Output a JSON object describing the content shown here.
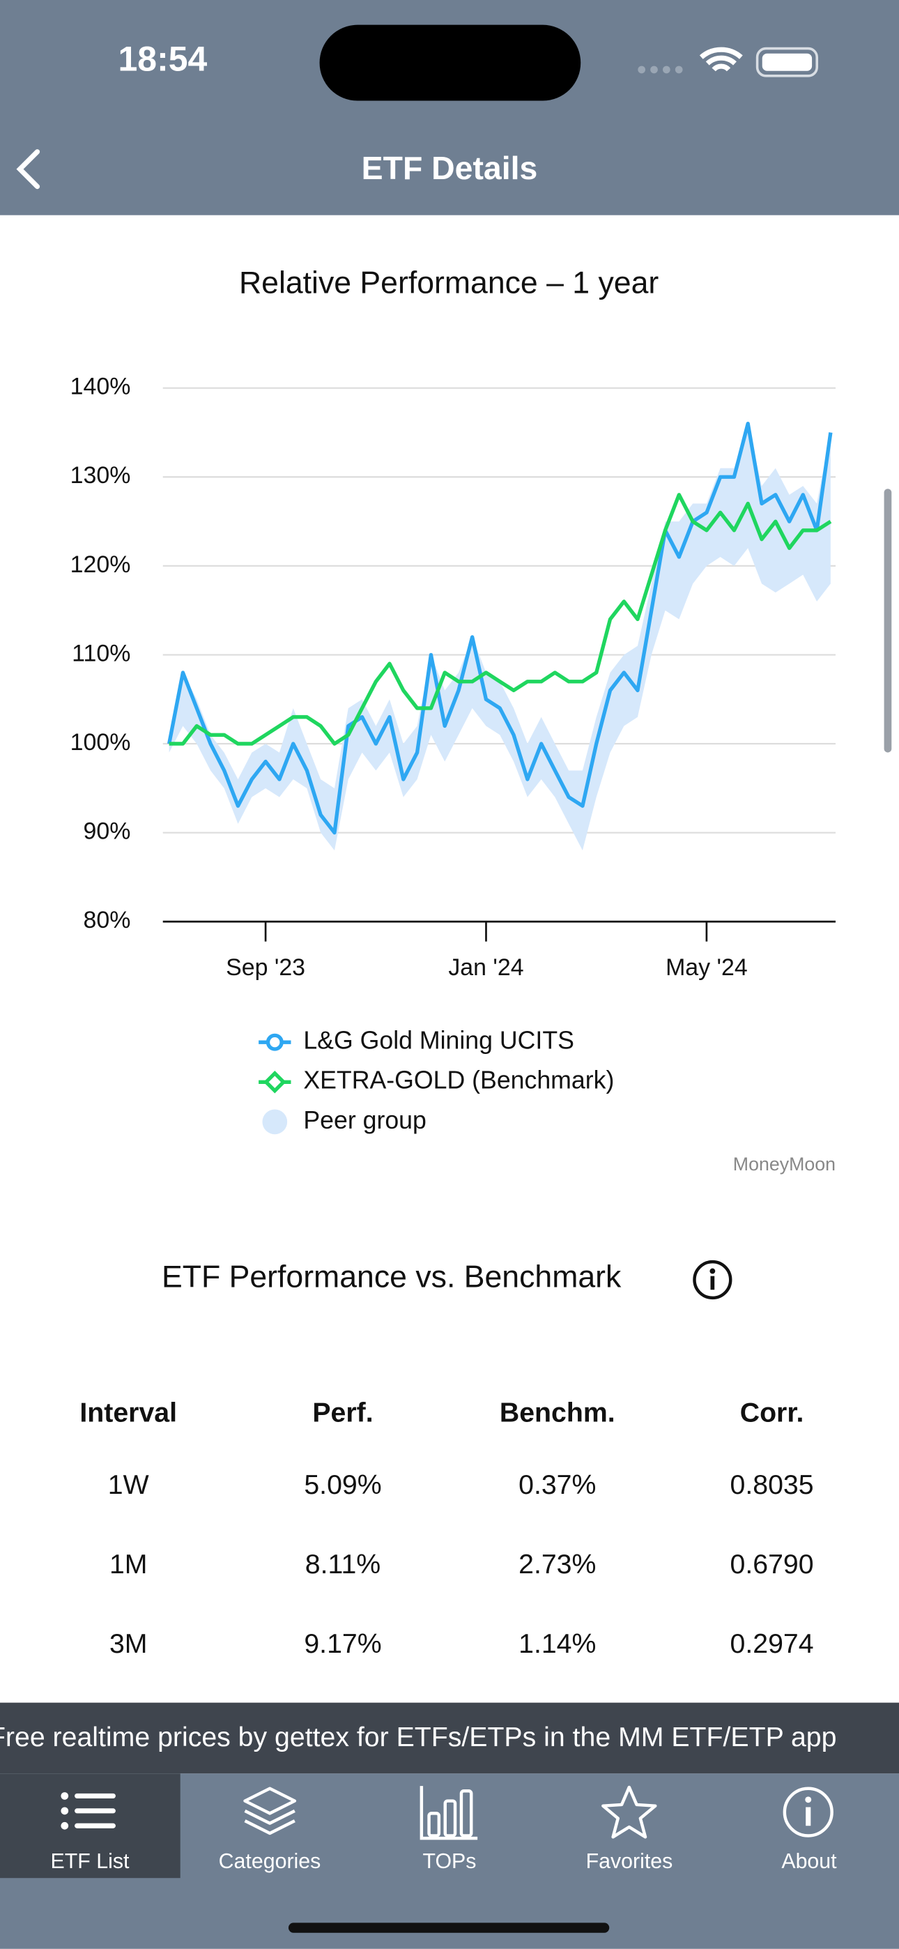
{
  "status_bar": {
    "time": "18:54"
  },
  "nav": {
    "title": "ETF Details"
  },
  "chart_data": {
    "type": "line",
    "title": "Relative Performance – 1 year",
    "watermark": "MoneyMoon",
    "categories": [
      null,
      null,
      null,
      null,
      null,
      null,
      null,
      "Sep '23",
      null,
      null,
      null,
      null,
      null,
      null,
      null,
      null,
      null,
      null,
      null,
      null,
      null,
      null,
      null,
      "Jan '24",
      null,
      null,
      null,
      null,
      null,
      null,
      null,
      null,
      null,
      null,
      null,
      null,
      null,
      null,
      null,
      "May '24",
      null,
      null,
      null,
      null,
      null,
      null,
      null,
      null,
      null
    ],
    "ylim": [
      80,
      140
    ],
    "yticks": [
      {
        "value": 80,
        "label": "80%"
      },
      {
        "value": 90,
        "label": "90%"
      },
      {
        "value": 100,
        "label": "100%"
      },
      {
        "value": 110,
        "label": "110%"
      },
      {
        "value": 120,
        "label": "120%"
      },
      {
        "value": 130,
        "label": "130%"
      },
      {
        "value": 140,
        "label": "140%"
      }
    ],
    "grid": true,
    "series": [
      {
        "name": "L&G Gold Mining UCITS",
        "color": "#2ea7f2",
        "marker": "circle",
        "values": [
          100,
          108,
          104,
          100,
          97,
          93,
          96,
          98,
          96,
          100,
          97,
          92,
          90,
          102,
          103,
          100,
          103,
          96,
          99,
          110,
          102,
          106,
          112,
          105,
          104,
          101,
          96,
          100,
          97,
          94,
          93,
          100,
          106,
          108,
          106,
          115,
          124,
          121,
          125,
          126,
          130,
          130,
          136,
          127,
          128,
          125,
          128,
          124,
          135
        ]
      },
      {
        "name": "XETRA-GOLD (Benchmark)",
        "color": "#1fd65f",
        "marker": "diamond",
        "values": [
          100,
          100,
          102,
          101,
          101,
          100,
          100,
          101,
          102,
          103,
          103,
          102,
          100,
          101,
          104,
          107,
          109,
          106,
          104,
          104,
          108,
          107,
          107,
          108,
          107,
          106,
          107,
          107,
          108,
          107,
          107,
          108,
          114,
          116,
          114,
          119,
          124,
          128,
          125,
          124,
          126,
          124,
          127,
          123,
          125,
          122,
          124,
          124,
          125
        ]
      },
      {
        "name": "Peer group",
        "type": "band",
        "color": "#d6e8fb",
        "marker": "dot",
        "low": [
          99,
          102,
          100,
          97,
          95,
          91,
          94,
          95,
          94,
          96,
          95,
          90,
          88,
          96,
          99,
          97,
          99,
          94,
          96,
          101,
          98,
          101,
          104,
          102,
          101,
          98,
          94,
          96,
          94,
          91,
          88,
          94,
          99,
          102,
          103,
          110,
          115,
          114,
          118,
          120,
          121,
          120,
          122,
          118,
          117,
          118,
          119,
          116,
          118
        ],
        "high": [
          101,
          108,
          105,
          101,
          99,
          96,
          99,
          100,
          99,
          104,
          100,
          96,
          95,
          104,
          105,
          102,
          105,
          100,
          102,
          110,
          106,
          108,
          112,
          108,
          107,
          104,
          100,
          103,
          100,
          97,
          97,
          103,
          108,
          110,
          111,
          118,
          125,
          125,
          127,
          127,
          131,
          131,
          136,
          129,
          131,
          128,
          129,
          127,
          135
        ]
      }
    ]
  },
  "section_title": "ETF Performance vs. Benchmark",
  "table": {
    "header": [
      "Interval",
      "Perf.",
      "Benchm.",
      "Corr."
    ],
    "rows": [
      [
        "1W",
        "5.09%",
        "0.37%",
        "0.8035"
      ],
      [
        "1M",
        "8.11%",
        "2.73%",
        "0.6790"
      ],
      [
        "3M",
        "9.17%",
        "1.14%",
        "0.2974"
      ]
    ]
  },
  "ticker": "Free realtime prices by gettex for ETFs/ETPs in the MM ETF/ETP app",
  "tabs": [
    "ETF List",
    "Categories",
    "TOPs",
    "Favorites",
    "About"
  ]
}
